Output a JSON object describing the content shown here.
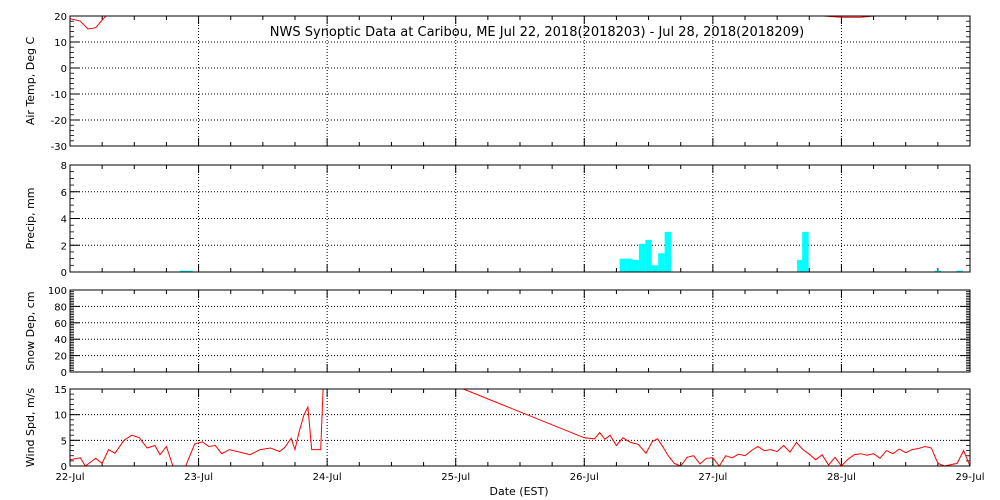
{
  "chart_data": {
    "type": "line",
    "title": "NWS Synoptic Data at Caribou, ME   Jul 22, 2018(2018203) - Jul 28, 2018(2018209)",
    "xlabel": "Date (EST)",
    "x_ticks": [
      "22-Jul",
      "23-Jul",
      "24-Jul",
      "25-Jul",
      "26-Jul",
      "27-Jul",
      "28-Jul",
      "29-Jul"
    ],
    "x_range_days": [
      0,
      7
    ],
    "grid": true,
    "panels": [
      {
        "id": "air-temp",
        "type": "line",
        "ylabel": "Air Temp, Deg C",
        "ylim": [
          -30,
          20
        ],
        "yticks": [
          -30,
          -20,
          -10,
          0,
          10,
          20
        ],
        "color": "#ff0000",
        "points": [
          [
            0.0,
            19
          ],
          [
            0.08,
            18
          ],
          [
            0.14,
            15
          ],
          [
            0.2,
            15.5
          ],
          [
            0.26,
            19
          ],
          [
            0.3,
            21
          ],
          [
            5.82,
            21
          ],
          [
            5.86,
            20
          ],
          [
            6.0,
            19.5
          ],
          [
            6.15,
            19.5
          ],
          [
            6.25,
            20
          ],
          [
            6.3,
            21
          ]
        ]
      },
      {
        "id": "precip",
        "type": "bar",
        "ylabel": "Precip, mm",
        "ylim": [
          0,
          8
        ],
        "yticks": [
          0,
          2,
          4,
          6,
          8
        ],
        "color": "#00ffff",
        "bars": [
          [
            0.88,
            0.1
          ],
          [
            0.93,
            0.1
          ],
          [
            4.3,
            1.0
          ],
          [
            4.35,
            1.0
          ],
          [
            4.4,
            0.9
          ],
          [
            4.45,
            2.1
          ],
          [
            4.5,
            2.4
          ],
          [
            4.55,
            0.5
          ],
          [
            4.6,
            1.4
          ],
          [
            4.65,
            3.0
          ],
          [
            5.68,
            0.9
          ],
          [
            5.72,
            3.0
          ],
          [
            6.75,
            0.1
          ],
          [
            6.92,
            0.1
          ]
        ]
      },
      {
        "id": "snow-depth",
        "type": "line",
        "ylabel": "Snow Dep, cm",
        "ylim": [
          0,
          100
        ],
        "yticks": [
          0,
          20,
          40,
          60,
          80,
          100
        ],
        "color": "#ff0000",
        "points": []
      },
      {
        "id": "wind-speed",
        "type": "line",
        "ylabel": "Wind Spd, m/s",
        "ylim": [
          0,
          15
        ],
        "yticks": [
          0,
          5,
          10,
          15
        ],
        "color": "#ff0000",
        "points": [
          [
            0.0,
            1.2
          ],
          [
            0.08,
            1.6
          ],
          [
            0.12,
            0
          ],
          [
            0.2,
            1.5
          ],
          [
            0.25,
            0.5
          ],
          [
            0.3,
            3.2
          ],
          [
            0.35,
            2.5
          ],
          [
            0.42,
            5
          ],
          [
            0.48,
            6
          ],
          [
            0.54,
            5.5
          ],
          [
            0.6,
            3.5
          ],
          [
            0.66,
            4
          ],
          [
            0.7,
            2.2
          ],
          [
            0.75,
            3.8
          ],
          [
            0.8,
            0
          ],
          [
            0.9,
            0
          ],
          [
            0.97,
            4.3
          ],
          [
            1.03,
            4.7
          ],
          [
            1.08,
            3.8
          ],
          [
            1.13,
            4
          ],
          [
            1.18,
            2.4
          ],
          [
            1.24,
            3.2
          ],
          [
            1.32,
            2.7
          ],
          [
            1.4,
            2.2
          ],
          [
            1.48,
            3.2
          ],
          [
            1.56,
            3.5
          ],
          [
            1.63,
            2.8
          ],
          [
            1.67,
            3.6
          ],
          [
            1.72,
            5.4
          ],
          [
            1.75,
            3.2
          ],
          [
            1.78,
            6.5
          ],
          [
            1.82,
            10
          ],
          [
            1.85,
            11.5
          ],
          [
            1.88,
            3.2
          ],
          [
            1.95,
            3.2
          ],
          [
            1.97,
            16
          ],
          [
            2.0,
            16
          ],
          [
            2.9,
            16
          ],
          [
            3.06,
            15
          ],
          [
            4.0,
            5.5
          ],
          [
            4.08,
            5.3
          ],
          [
            4.12,
            6.5
          ],
          [
            4.16,
            5.2
          ],
          [
            4.2,
            6
          ],
          [
            4.25,
            4
          ],
          [
            4.3,
            5.5
          ],
          [
            4.36,
            4.6
          ],
          [
            4.42,
            4.2
          ],
          [
            4.48,
            2.5
          ],
          [
            4.53,
            4.8
          ],
          [
            4.57,
            5.3
          ],
          [
            4.61,
            3.8
          ],
          [
            4.65,
            2.1
          ],
          [
            4.7,
            0.5
          ],
          [
            4.75,
            0
          ],
          [
            4.8,
            1.7
          ],
          [
            4.85,
            2
          ],
          [
            4.9,
            0.4
          ],
          [
            4.95,
            1.5
          ],
          [
            5.0,
            1.6
          ],
          [
            5.05,
            0
          ],
          [
            5.1,
            2
          ],
          [
            5.15,
            1.6
          ],
          [
            5.2,
            2.3
          ],
          [
            5.25,
            2
          ],
          [
            5.3,
            3
          ],
          [
            5.35,
            3.8
          ],
          [
            5.4,
            3
          ],
          [
            5.45,
            3.2
          ],
          [
            5.5,
            2.8
          ],
          [
            5.55,
            4
          ],
          [
            5.6,
            2.7
          ],
          [
            5.65,
            4.6
          ],
          [
            5.7,
            3.2
          ],
          [
            5.75,
            2.3
          ],
          [
            5.8,
            1.2
          ],
          [
            5.85,
            2.2
          ],
          [
            5.9,
            0.2
          ],
          [
            5.95,
            1.7
          ],
          [
            6.0,
            0
          ],
          [
            6.05,
            1.3
          ],
          [
            6.1,
            2.2
          ],
          [
            6.15,
            2.4
          ],
          [
            6.2,
            2.1
          ],
          [
            6.25,
            2.4
          ],
          [
            6.3,
            1.5
          ],
          [
            6.35,
            3
          ],
          [
            6.4,
            2.4
          ],
          [
            6.45,
            3.3
          ],
          [
            6.5,
            2.6
          ],
          [
            6.55,
            3.2
          ],
          [
            6.6,
            3.4
          ],
          [
            6.65,
            3.8
          ],
          [
            6.7,
            3.5
          ],
          [
            6.75,
            0.5
          ],
          [
            6.8,
            0
          ],
          [
            6.9,
            0.5
          ],
          [
            6.95,
            3
          ],
          [
            7.0,
            0
          ]
        ]
      }
    ]
  }
}
